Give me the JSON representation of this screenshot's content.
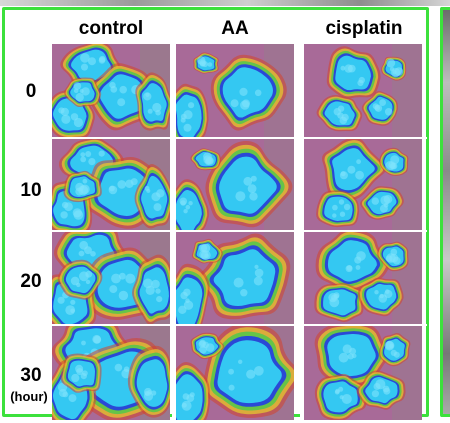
{
  "columns": [
    "control",
    "AA",
    "cisplatin"
  ],
  "rows": [
    "0",
    "10",
    "20",
    "30"
  ],
  "row_unit": "(hour)",
  "colors": {
    "frame": "#3ce13c",
    "background_tissue": "#a86a98",
    "cell_core": "#34c8f2",
    "cell_edge": "#2a49d6",
    "halo_green": "#58c64a",
    "halo_yellow": "#e2c033",
    "halo_red": "#d4432b"
  }
}
